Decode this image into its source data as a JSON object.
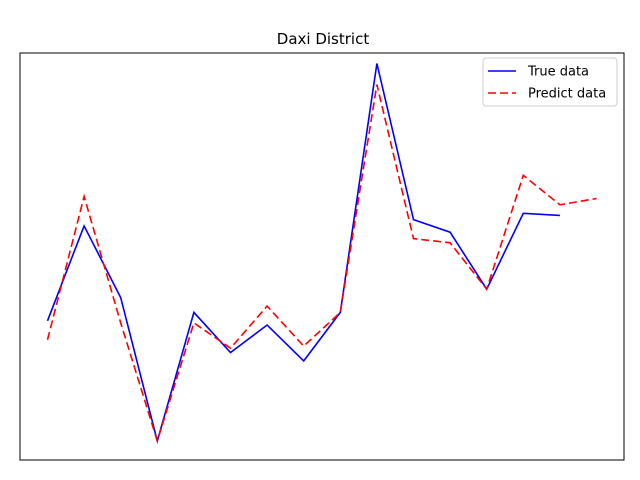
{
  "chart_data": {
    "type": "line",
    "title": "Daxi District",
    "xlabel": "",
    "ylabel": "",
    "axes_ticks_visible": false,
    "grid": false,
    "legend_position": "top-right",
    "x": [
      0,
      1,
      2,
      3,
      4,
      5,
      6,
      7,
      8,
      9,
      10,
      11,
      12,
      13,
      14,
      15
    ],
    "xlim": [
      -0.75,
      15.75
    ],
    "ylim": [
      -0.45,
      9.2
    ],
    "series": [
      {
        "name": "True data",
        "color": "#0000ff",
        "style": "solid",
        "values": [
          2.85,
          5.1,
          3.4,
          0.0,
          3.05,
          2.1,
          2.75,
          1.9,
          3.05,
          8.95,
          5.25,
          4.95,
          3.6,
          5.4,
          5.35,
          null
        ]
      },
      {
        "name": "Predict data",
        "color": "#ff0000",
        "style": "dashed",
        "values": [
          2.4,
          5.8,
          2.8,
          0.0,
          2.8,
          2.2,
          3.2,
          2.25,
          3.05,
          8.45,
          4.8,
          4.7,
          3.6,
          6.3,
          5.6,
          5.75
        ]
      }
    ]
  }
}
